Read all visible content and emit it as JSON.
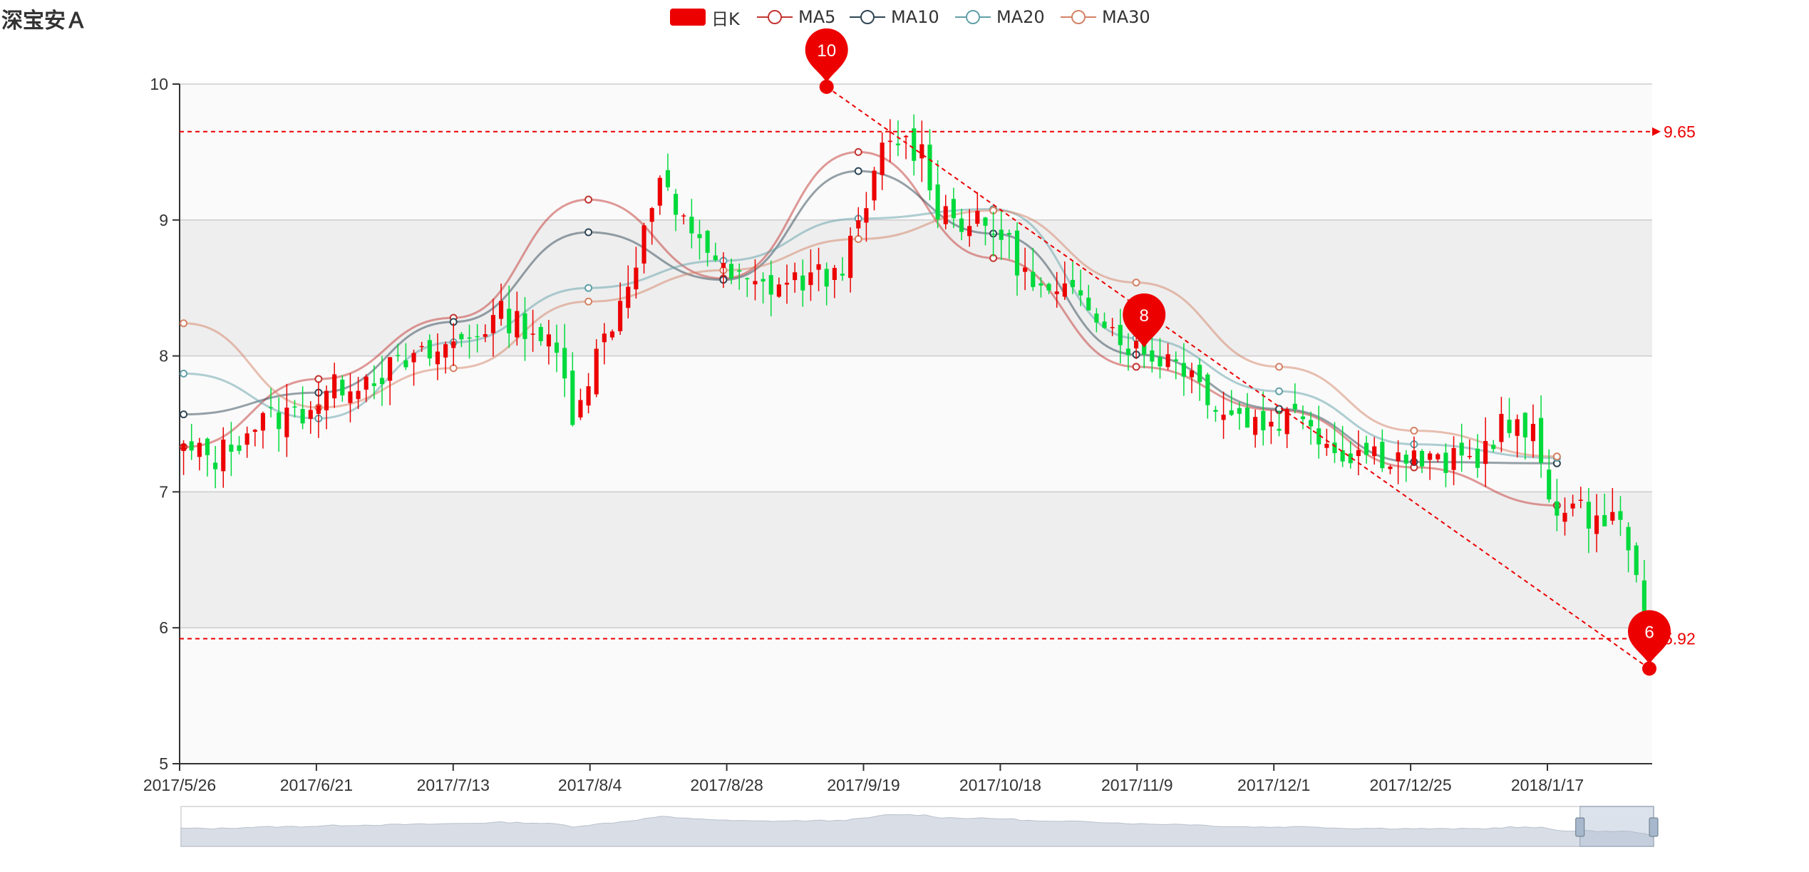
{
  "title": "深宝安Ａ",
  "legend": [
    {
      "label": "日K",
      "color": "#ec0000",
      "type": "candle"
    },
    {
      "label": "MA5",
      "color": "#c23531",
      "type": "line"
    },
    {
      "label": "MA10",
      "color": "#2f4554",
      "type": "line"
    },
    {
      "label": "MA20",
      "color": "#61a0a8",
      "type": "line"
    },
    {
      "label": "MA30",
      "color": "#d48265",
      "type": "line"
    }
  ],
  "colors": {
    "up": "#ec0000",
    "down": "#00da3c",
    "markline": "#ec0000",
    "grid_band": "#eeeeee"
  },
  "chart_data": {
    "type": "candlestick",
    "title": "深宝安Ａ",
    "x_ticks": [
      "2017/5/26",
      "2017/6/21",
      "2017/7/13",
      "2017/8/4",
      "2017/8/28",
      "2017/9/19",
      "2017/10/18",
      "2017/11/9",
      "2017/12/1",
      "2017/12/25",
      "2018/1/17"
    ],
    "ylim": [
      5,
      10
    ],
    "y_ticks": [
      "5",
      "6",
      "7",
      "8",
      "9",
      "10"
    ],
    "grid": true,
    "legend_position": "top",
    "close_path": [
      [
        0,
        7.3
      ],
      [
        4,
        7.25
      ],
      [
        9,
        7.5
      ],
      [
        15,
        7.6
      ],
      [
        20,
        7.8
      ],
      [
        26,
        7.9
      ],
      [
        31,
        8.0
      ],
      [
        36,
        8.15
      ],
      [
        40,
        8.3
      ],
      [
        44,
        8.2
      ],
      [
        47,
        8.0
      ],
      [
        49,
        7.6
      ],
      [
        52,
        8.0
      ],
      [
        55,
        8.4
      ],
      [
        58,
        8.9
      ],
      [
        60,
        9.3
      ],
      [
        62,
        9.0
      ],
      [
        65,
        8.9
      ],
      [
        68,
        8.6
      ],
      [
        72,
        8.5
      ],
      [
        77,
        8.55
      ],
      [
        82,
        8.6
      ],
      [
        85,
        8.9
      ],
      [
        88,
        9.5
      ],
      [
        90,
        9.6
      ],
      [
        93,
        9.5
      ],
      [
        95,
        9.1
      ],
      [
        98,
        9.0
      ],
      [
        103,
        8.9
      ],
      [
        107,
        8.5
      ],
      [
        110,
        8.4
      ],
      [
        113,
        8.5
      ],
      [
        117,
        8.2
      ],
      [
        121,
        8.0
      ],
      [
        125,
        8.0
      ],
      [
        128,
        7.8
      ],
      [
        131,
        7.6
      ],
      [
        136,
        7.5
      ],
      [
        141,
        7.6
      ],
      [
        145,
        7.3
      ],
      [
        149,
        7.3
      ],
      [
        154,
        7.25
      ],
      [
        158,
        7.2
      ],
      [
        163,
        7.25
      ],
      [
        166,
        7.5
      ],
      [
        170,
        7.4
      ],
      [
        172,
        7.0
      ],
      [
        174,
        6.85
      ],
      [
        180,
        6.8
      ],
      [
        182,
        6.65
      ],
      [
        184,
        5.95
      ]
    ],
    "n_days": 185,
    "markPoints": [
      {
        "label": "10",
        "value": 9.98,
        "index": 81
      },
      {
        "label": "8",
        "value": 8.03,
        "index": 121
      },
      {
        "label": "6",
        "value": 5.7,
        "index": 185
      }
    ],
    "markLines": [
      {
        "label": "9.65",
        "value": 9.65
      },
      {
        "label": "5.92",
        "value": 5.92
      }
    ],
    "trendLine": {
      "from": {
        "index": 81,
        "value": 9.98
      },
      "to": {
        "index": 185,
        "value": 5.7
      }
    },
    "ma_anchor_labels": [
      "MA5",
      "MA10",
      "MA20",
      "MA30"
    ],
    "ma_anchors": {
      "MA5": [
        [
          0,
          7.33
        ],
        [
          17,
          7.83
        ],
        [
          34,
          8.28
        ],
        [
          51,
          9.15
        ],
        [
          68,
          8.57
        ],
        [
          85,
          9.5
        ],
        [
          102,
          8.72
        ],
        [
          120,
          7.92
        ],
        [
          138,
          7.6
        ],
        [
          155,
          7.18
        ],
        [
          173,
          6.9
        ]
      ],
      "MA10": [
        [
          0,
          7.57
        ],
        [
          17,
          7.73
        ],
        [
          34,
          8.25
        ],
        [
          51,
          8.91
        ],
        [
          68,
          8.56
        ],
        [
          85,
          9.36
        ],
        [
          102,
          8.9
        ],
        [
          120,
          8.01
        ],
        [
          138,
          7.61
        ],
        [
          155,
          7.22
        ],
        [
          173,
          7.21
        ]
      ],
      "MA20": [
        [
          0,
          7.87
        ],
        [
          17,
          7.54
        ],
        [
          34,
          8.1
        ],
        [
          51,
          8.5
        ],
        [
          68,
          8.7
        ],
        [
          85,
          9.01
        ],
        [
          102,
          9.08
        ],
        [
          120,
          8.13
        ],
        [
          138,
          7.74
        ],
        [
          155,
          7.35
        ],
        [
          173,
          7.25
        ]
      ],
      "MA30": [
        [
          0,
          8.24
        ],
        [
          17,
          7.62
        ],
        [
          34,
          7.91
        ],
        [
          51,
          8.4
        ],
        [
          68,
          8.63
        ],
        [
          85,
          8.86
        ],
        [
          102,
          9.07
        ],
        [
          120,
          8.54
        ],
        [
          138,
          7.92
        ],
        [
          155,
          7.45
        ],
        [
          173,
          7.26
        ]
      ]
    }
  },
  "dataZoom": {
    "start_pct": 95,
    "end_pct": 100
  }
}
